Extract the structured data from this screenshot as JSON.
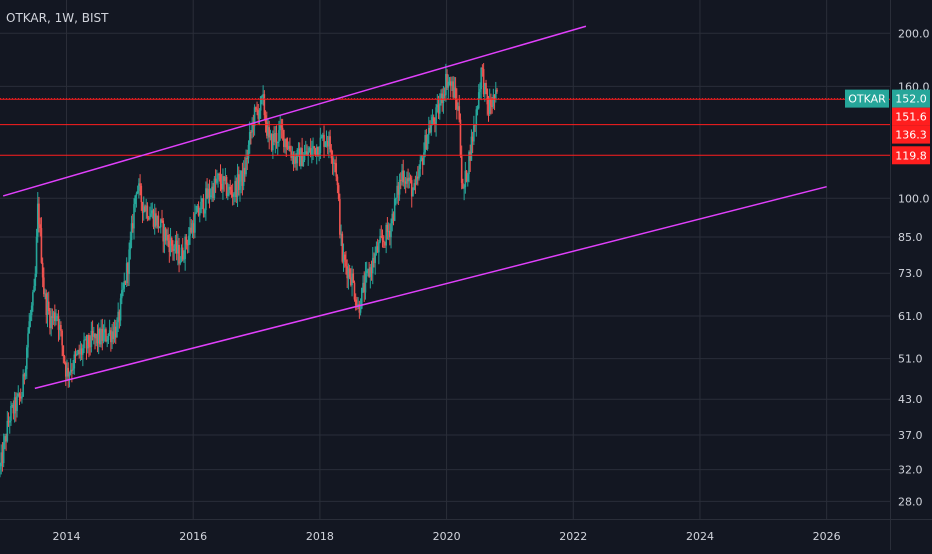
{
  "symbol_title": "OTKAR, 1W, BIST",
  "colors": {
    "background": "#131722",
    "grid": "#2a2e39",
    "axis_text": "#d1d4dc",
    "up": "#26a69a",
    "down": "#ef5350",
    "channel": "#e040fb",
    "level": "#ff1e1e",
    "price_tag": "#26a69a",
    "level_tag": "#ff1e1e"
  },
  "chart_data": {
    "type": "candlestick",
    "x_range": [
      2012.95,
      2027.0
    ],
    "y_range": [
      26.0,
      230.0
    ],
    "log_scale": true,
    "grid": true,
    "x_ticks": [
      {
        "label": "2014",
        "value": 2014
      },
      {
        "label": "2016",
        "value": 2016
      },
      {
        "label": "2018",
        "value": 2018
      },
      {
        "label": "2020",
        "value": 2020
      },
      {
        "label": "2022",
        "value": 2022
      },
      {
        "label": "2024",
        "value": 2024
      },
      {
        "label": "2026",
        "value": 2026
      }
    ],
    "y_ticks": [
      {
        "label": "200.0",
        "value": 200
      },
      {
        "label": "160.0",
        "value": 160
      },
      {
        "label": "100.0",
        "value": 100
      },
      {
        "label": "85.0",
        "value": 85
      },
      {
        "label": "73.0",
        "value": 73
      },
      {
        "label": "61.0",
        "value": 61
      },
      {
        "label": "51.0",
        "value": 51
      },
      {
        "label": "43.0",
        "value": 43
      },
      {
        "label": "37.0",
        "value": 37
      },
      {
        "label": "32.0",
        "value": 32
      },
      {
        "label": "28.0",
        "value": 28
      }
    ],
    "price_path": [
      [
        2012.95,
        32
      ],
      [
        2013.1,
        40
      ],
      [
        2013.3,
        44
      ],
      [
        2013.4,
        58
      ],
      [
        2013.5,
        68
      ],
      [
        2013.55,
        98
      ],
      [
        2013.65,
        66
      ],
      [
        2013.75,
        60
      ],
      [
        2013.85,
        62
      ],
      [
        2014.0,
        48
      ],
      [
        2014.2,
        52
      ],
      [
        2014.4,
        55
      ],
      [
        2014.6,
        56
      ],
      [
        2014.8,
        58
      ],
      [
        2015.0,
        80
      ],
      [
        2015.1,
        106
      ],
      [
        2015.2,
        98
      ],
      [
        2015.4,
        92
      ],
      [
        2015.6,
        84
      ],
      [
        2015.8,
        78
      ],
      [
        2016.0,
        90
      ],
      [
        2016.2,
        100
      ],
      [
        2016.4,
        108
      ],
      [
        2016.6,
        102
      ],
      [
        2016.8,
        110
      ],
      [
        2016.95,
        140
      ],
      [
        2017.1,
        150
      ],
      [
        2017.2,
        126
      ],
      [
        2017.4,
        132
      ],
      [
        2017.6,
        118
      ],
      [
        2017.8,
        120
      ],
      [
        2018.0,
        126
      ],
      [
        2018.1,
        130
      ],
      [
        2018.25,
        116
      ],
      [
        2018.35,
        78
      ],
      [
        2018.5,
        72
      ],
      [
        2018.6,
        63
      ],
      [
        2018.75,
        72
      ],
      [
        2018.9,
        80
      ],
      [
        2019.1,
        88
      ],
      [
        2019.3,
        112
      ],
      [
        2019.5,
        102
      ],
      [
        2019.7,
        132
      ],
      [
        2019.85,
        142
      ],
      [
        2020.0,
        166
      ],
      [
        2020.1,
        158
      ],
      [
        2020.2,
        142
      ],
      [
        2020.25,
        100
      ],
      [
        2020.35,
        118
      ],
      [
        2020.45,
        138
      ],
      [
        2020.55,
        172
      ],
      [
        2020.65,
        145
      ],
      [
        2020.75,
        152
      ],
      [
        2020.8,
        152
      ]
    ],
    "channel_lines": [
      {
        "from": [
          2013.0,
          101
        ],
        "to": [
          2022.2,
          206
        ]
      },
      {
        "from": [
          2013.5,
          45
        ],
        "to": [
          2026.0,
          105
        ]
      }
    ],
    "levels": [
      152.0,
      151.6,
      136.3,
      119.8
    ],
    "tags": [
      {
        "name": "OTKAR",
        "value": 152.0,
        "label": "152.0",
        "kind": "price"
      },
      {
        "value": 151.6,
        "label": "151.6",
        "kind": "level"
      },
      {
        "value": 136.3,
        "label": "136.3",
        "kind": "level"
      },
      {
        "value": 119.8,
        "label": "119.8",
        "kind": "level"
      }
    ]
  }
}
